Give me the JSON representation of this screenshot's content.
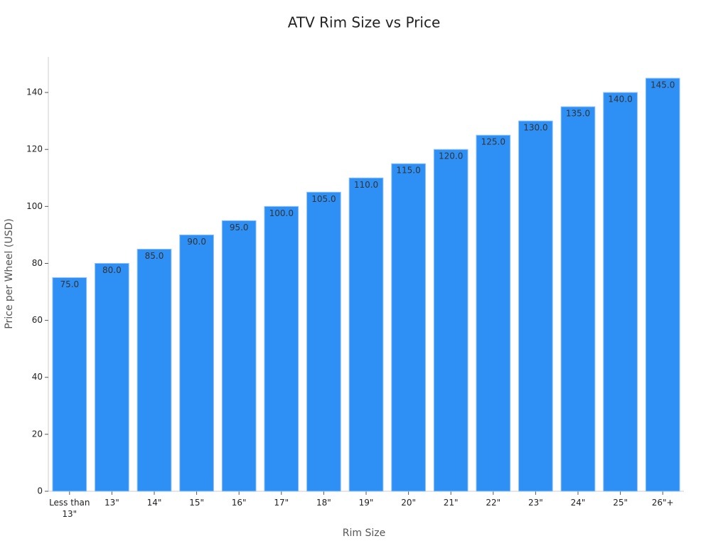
{
  "chart_data": {
    "type": "bar",
    "title": "ATV Rim Size vs Price",
    "x_label": "Rim Size",
    "y_label": "Price per Wheel (USD)",
    "categories": [
      "Less than 13\"",
      "13\"",
      "14\"",
      "15\"",
      "16\"",
      "17\"",
      "18\"",
      "19\"",
      "20\"",
      "21\"",
      "22\"",
      "23\"",
      "24\"",
      "25\"",
      "26\"+"
    ],
    "values": [
      75,
      80,
      85,
      90,
      95,
      100,
      105,
      110,
      115,
      120,
      125,
      130,
      135,
      140,
      145
    ],
    "value_labels": [
      "75.0",
      "80.0",
      "85.0",
      "90.0",
      "95.0",
      "100.0",
      "105.0",
      "110.0",
      "115.0",
      "120.0",
      "125.0",
      "130.0",
      "135.0",
      "140.0",
      "145.0"
    ],
    "color": "#2e8ff5",
    "ylim": [
      0,
      152.5
    ],
    "yticks": [
      0,
      20,
      40,
      60,
      80,
      100,
      120,
      140
    ],
    "grid": false
  }
}
